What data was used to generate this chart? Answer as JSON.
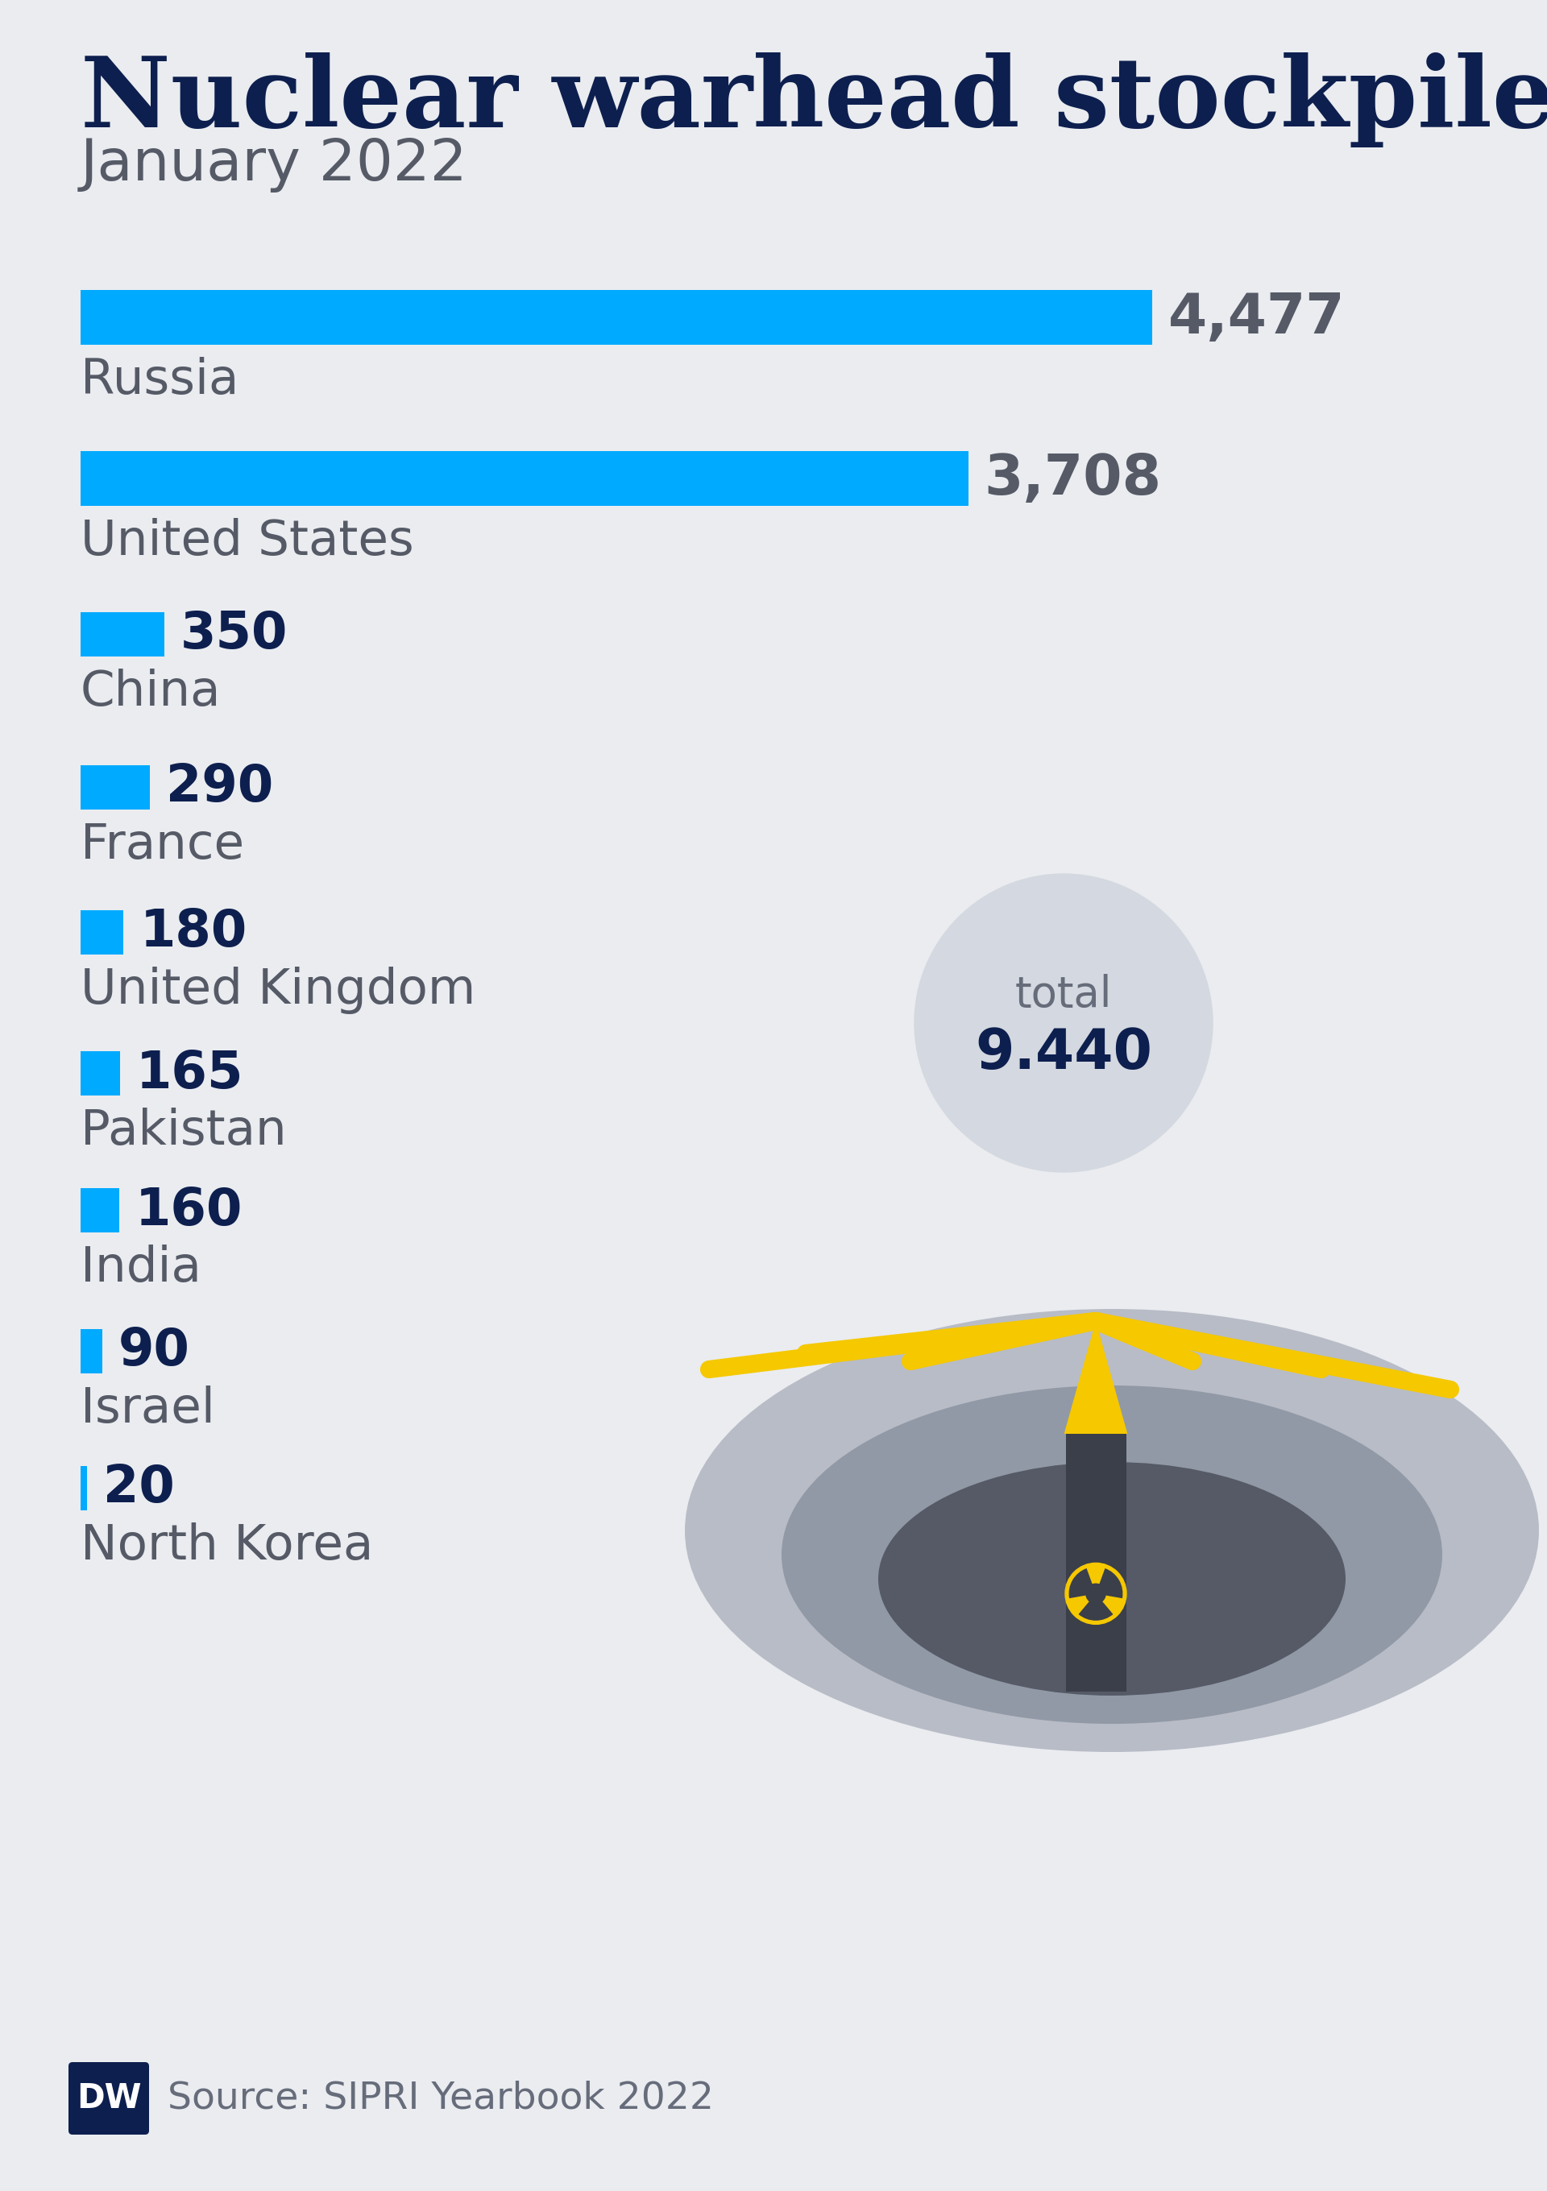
{
  "title": "Nuclear warhead stockpiles",
  "subtitle": "January 2022",
  "background_color": "#eaecf0",
  "title_color": "#0d1f4e",
  "subtitle_color": "#555a66",
  "bar_color": "#00aaff",
  "value_color_large": "#555a66",
  "value_color_small": "#0d1f4e",
  "country_label_color": "#555a66",
  "total_label_color": "#666c7a",
  "total_value_color": "#0d1f4e",
  "source_color": "#666c7a",
  "countries": [
    "Russia",
    "United States",
    "China",
    "France",
    "United Kingdom",
    "Pakistan",
    "India",
    "Israel",
    "North Korea"
  ],
  "values": [
    4477,
    3708,
    350,
    290,
    180,
    165,
    160,
    90,
    20
  ],
  "value_labels": [
    "4,477",
    "3,708",
    "350",
    "290",
    "180",
    "165",
    "160",
    "90",
    "20"
  ],
  "total_label": "total",
  "total_value": "9.440",
  "source_text": "Source: SIPRI Yearbook 2022",
  "dw_logo_color": "#ffffff",
  "dw_logo_bg": "#0d1f4e",
  "ray_color": "#f5c800",
  "missile_body_color": "#3a3f4a",
  "missile_tip_color": "#f5c800",
  "silo_outer_color": "#b8bcc6",
  "silo_mid_color": "#9199a6",
  "silo_inner_color": "#555a66",
  "nuke_symbol_color": "#f5c800"
}
